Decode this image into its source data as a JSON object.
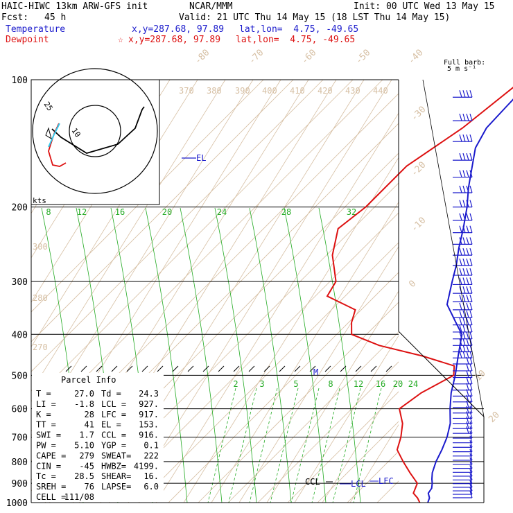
{
  "header": {
    "model": "HAIC-HIWC 13km ARW-GFS init",
    "org": "NCAR/MMM",
    "init": "Init: 00 UTC Wed 13 May 15",
    "fcst_label": "Fcst:",
    "fcst_value": "45 h",
    "valid": "Valid: 21 UTC Thu 14 May 15 (18 LST Thu 14 May 15)"
  },
  "legend": {
    "temperature": {
      "label": "Temperature",
      "xy": "x,y=287.68, 97.89",
      "latlon": "lat,lon=  4.75, -49.65",
      "color": "#1a1acc"
    },
    "dewpoint": {
      "label": "Dewpoint",
      "marker": "☆",
      "xy": "x,y=287.68, 97.89",
      "latlon": "lat,lon=  4.75, -49.65",
      "color": "#dd1111"
    }
  },
  "wind_key": {
    "line1": "Full barb:",
    "line2": "5 m s⁻¹"
  },
  "hodograph": {
    "ring_labels": [
      "25",
      "10"
    ],
    "units": "kts"
  },
  "parcel_info": {
    "title": "Parcel Info",
    "rows": [
      [
        "T  =",
        "27.0",
        "Td =",
        "24.3"
      ],
      [
        "LI =",
        "-1.8",
        "LCL =",
        "927."
      ],
      [
        "K  =",
        "28",
        "LFC =",
        "917."
      ],
      [
        "TT =",
        "41",
        "EL =",
        "153."
      ],
      [
        "SWI =",
        "1.7",
        "CCL =",
        "916."
      ],
      [
        "PW =",
        "5.10",
        "YGP =",
        "0.1"
      ],
      [
        "CAPE =",
        "279",
        "SWEAT=",
        "222"
      ],
      [
        "CIN =",
        "-45",
        "HWBZ=",
        "4199."
      ],
      [
        "Tc =",
        "28.5",
        "SHEAR=",
        "16."
      ],
      [
        "SREH =",
        "76",
        "LAPSE=",
        "6.0"
      ],
      [
        "CELL =",
        "111/08",
        "",
        ""
      ]
    ]
  },
  "chart_data": {
    "type": "line",
    "subtype": "skew-T log-p sounding",
    "y_axis": {
      "label": "",
      "units": "hPa",
      "scale": "log",
      "range": [
        1000,
        100
      ],
      "ticks": [
        100,
        200,
        300,
        400,
        500,
        600,
        700,
        800,
        900,
        1000
      ]
    },
    "isotherm_labels": [
      "-80",
      "-70",
      "-60",
      "-50",
      "-40",
      "-30",
      "-20",
      "-10",
      "0",
      "10",
      "20",
      "30",
      "40"
    ],
    "theta_labels": [
      "370",
      "380",
      "390",
      "400",
      "410",
      "420",
      "430",
      "440",
      "300",
      "280",
      "270"
    ],
    "theta_e_labels": [
      "8",
      "12",
      "16",
      "20",
      "24",
      "28",
      "32"
    ],
    "mixing_ratio_labels": [
      "2",
      "3",
      "5",
      "8",
      "12",
      "16",
      "20",
      "24"
    ],
    "level_labels": [
      {
        "label": "EL",
        "pressure": 153
      },
      {
        "label": "M",
        "pressure": 500
      },
      {
        "label": "CCL",
        "pressure": 916
      },
      {
        "label": "LCL",
        "pressure": 927
      },
      {
        "label": "LFC",
        "pressure": 917
      }
    ],
    "series": [
      {
        "name": "Temperature",
        "color": "#1a1acc",
        "points": [
          [
            100,
            -80
          ],
          [
            115,
            -79.5
          ],
          [
            130,
            -79
          ],
          [
            145,
            -76
          ],
          [
            160,
            -71
          ],
          [
            180,
            -65
          ],
          [
            200,
            -59
          ],
          [
            225,
            -53
          ],
          [
            250,
            -48
          ],
          [
            275,
            -43
          ],
          [
            300,
            -39
          ],
          [
            340,
            -33
          ],
          [
            375,
            -24
          ],
          [
            400,
            -18
          ],
          [
            450,
            -12
          ],
          [
            500,
            -6.5
          ],
          [
            550,
            -2
          ],
          [
            600,
            3
          ],
          [
            650,
            8
          ],
          [
            700,
            11.5
          ],
          [
            750,
            14
          ],
          [
            800,
            16
          ],
          [
            850,
            18.5
          ],
          [
            880,
            20.5
          ],
          [
            900,
            22
          ],
          [
            925,
            23.5
          ],
          [
            950,
            24
          ],
          [
            975,
            26
          ],
          [
            1000,
            27
          ]
        ]
      },
      {
        "name": "Dewpoint",
        "color": "#dd1111",
        "points": [
          [
            100,
            -83
          ],
          [
            130,
            -87
          ],
          [
            160,
            -93
          ],
          [
            190,
            -93
          ],
          [
            200,
            -93
          ],
          [
            225,
            -95
          ],
          [
            260,
            -88
          ],
          [
            300,
            -78
          ],
          [
            325,
            -76
          ],
          [
            350,
            -62
          ],
          [
            375,
            -59
          ],
          [
            400,
            -55
          ],
          [
            425,
            -42
          ],
          [
            450,
            -24
          ],
          [
            475,
            -10
          ],
          [
            500,
            -7
          ],
          [
            550,
            -12
          ],
          [
            600,
            -14
          ],
          [
            650,
            -8
          ],
          [
            700,
            -4
          ],
          [
            750,
            -1
          ],
          [
            800,
            5
          ],
          [
            850,
            11
          ],
          [
            900,
            17
          ],
          [
            950,
            19
          ],
          [
            975,
            22
          ],
          [
            1000,
            24.3
          ]
        ]
      }
    ],
    "hodograph_trace": [
      [
        -12,
        -4
      ],
      [
        -10,
        -2
      ],
      [
        -5,
        -1
      ],
      [
        0,
        -1.5
      ],
      [
        5,
        -1
      ],
      [
        10,
        1
      ],
      [
        14,
        4
      ]
    ]
  }
}
